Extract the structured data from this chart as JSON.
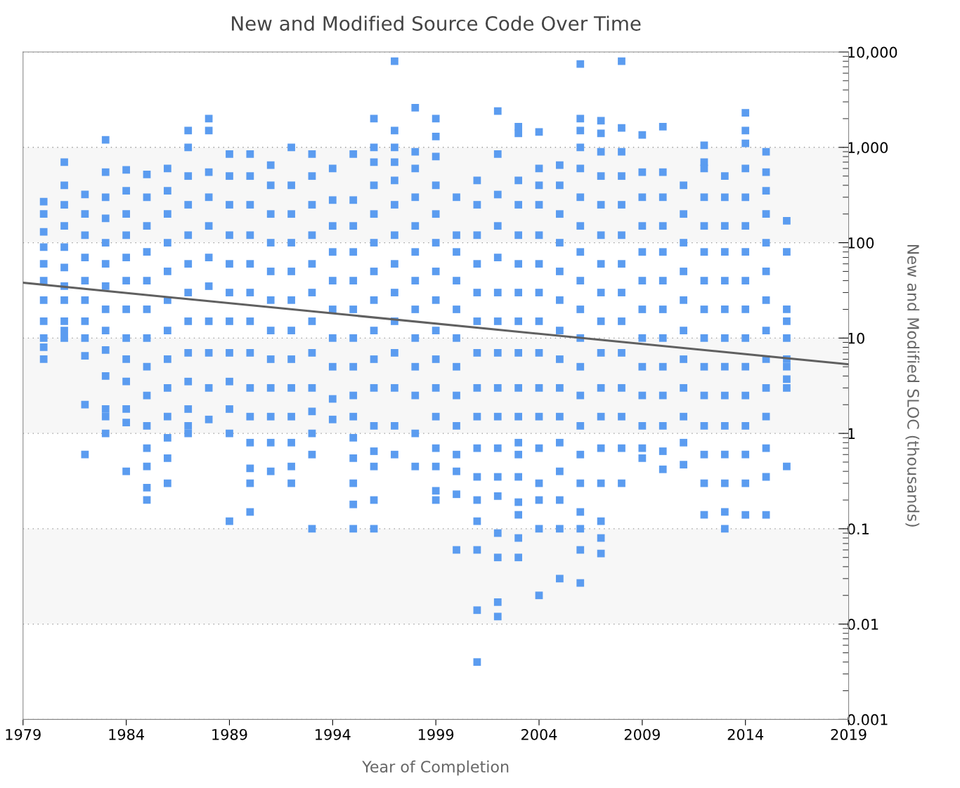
{
  "chart_data": {
    "type": "scatter",
    "title": "New and Modified Source Code Over Time",
    "xlabel": "Year of Completion",
    "ylabel": "New and Modified SLOC (thousands)",
    "log": "y",
    "grid": "y",
    "marker": "square",
    "xlim": [
      1979,
      2019
    ],
    "xticks": [
      1979,
      1984,
      1989,
      1994,
      1999,
      2004,
      2009,
      2014,
      2019
    ],
    "ylim": [
      0.001,
      10000
    ],
    "yticks": [
      {
        "value": 10000,
        "label": "10,000"
      },
      {
        "value": 1000,
        "label": "1,000"
      },
      100,
      10,
      1,
      0.1,
      0.01,
      0.001
    ],
    "bands": [
      {
        "axis": "y",
        "from": 100,
        "to": 1000,
        "color": "#f7f7f7"
      },
      {
        "axis": "y",
        "from": 1,
        "to": 10,
        "color": "#f7f7f7"
      },
      {
        "axis": "y",
        "from": 0.01,
        "to": 0.1,
        "color": "#f7f7f7"
      }
    ],
    "series": [
      {
        "color": "#5b9cf0",
        "x": [
          1980,
          1980,
          1980,
          1980,
          1980,
          1980,
          1980,
          1980,
          1980,
          1980,
          1980
        ],
        "values": [
          270,
          200,
          130,
          90,
          60,
          40,
          25,
          15,
          10,
          8,
          6
        ]
      },
      {
        "color": "#5b9cf0",
        "x": [
          1981,
          1981,
          1981,
          1981,
          1981,
          1981,
          1981,
          1981,
          1981,
          1981,
          1981
        ],
        "values": [
          700,
          400,
          250,
          150,
          90,
          55,
          35,
          25,
          15,
          12,
          10
        ]
      },
      {
        "color": "#5b9cf0",
        "x": [
          1982,
          1982,
          1982,
          1982,
          1982,
          1982,
          1982,
          1982,
          1982,
          1982,
          1982
        ],
        "values": [
          320,
          200,
          120,
          70,
          40,
          25,
          15,
          10,
          6.5,
          2,
          0.6
        ]
      },
      {
        "color": "#5b9cf0",
        "x": [
          1983,
          1983,
          1983,
          1983,
          1983,
          1983,
          1983,
          1983,
          1983,
          1983,
          1983,
          1983,
          1983,
          1983
        ],
        "values": [
          1200,
          550,
          300,
          180,
          100,
          60,
          35,
          20,
          12,
          7.5,
          4,
          1.8,
          1.5,
          1
        ]
      },
      {
        "color": "#5b9cf0",
        "x": [
          1984,
          1984,
          1984,
          1984,
          1984,
          1984,
          1984,
          1984,
          1984,
          1984,
          1984,
          1984,
          1984
        ],
        "values": [
          580,
          350,
          200,
          120,
          70,
          40,
          20,
          10,
          6,
          3.5,
          1.8,
          1.3,
          0.4
        ]
      },
      {
        "color": "#5b9cf0",
        "x": [
          1985,
          1985,
          1985,
          1985,
          1985,
          1985,
          1985,
          1985,
          1985,
          1985,
          1985,
          1985,
          1985,
          1985
        ],
        "values": [
          520,
          300,
          150,
          80,
          40,
          20,
          10,
          5,
          2.5,
          1.2,
          0.7,
          0.45,
          0.27,
          0.2
        ]
      },
      {
        "color": "#5b9cf0",
        "x": [
          1986,
          1986,
          1986,
          1986,
          1986,
          1986,
          1986,
          1986,
          1986,
          1986,
          1986,
          1986,
          1986
        ],
        "values": [
          600,
          350,
          200,
          100,
          50,
          25,
          12,
          6,
          3,
          1.5,
          0.9,
          0.55,
          0.3
        ]
      },
      {
        "color": "#5b9cf0",
        "x": [
          1987,
          1987,
          1987,
          1987,
          1987,
          1987,
          1987,
          1987,
          1987,
          1987,
          1987,
          1987,
          1987
        ],
        "values": [
          1500,
          1000,
          500,
          250,
          120,
          60,
          30,
          15,
          7,
          3.5,
          1.8,
          1.2,
          1
        ]
      },
      {
        "color": "#5b9cf0",
        "x": [
          1988,
          1988,
          1988,
          1988,
          1988,
          1988,
          1988,
          1988,
          1988,
          1988,
          1988
        ],
        "values": [
          2000,
          1500,
          550,
          300,
          150,
          70,
          35,
          15,
          7,
          3,
          1.4
        ]
      },
      {
        "color": "#5b9cf0",
        "x": [
          1989,
          1989,
          1989,
          1989,
          1989,
          1989,
          1989,
          1989,
          1989,
          1989,
          1989,
          1989
        ],
        "values": [
          850,
          500,
          250,
          120,
          60,
          30,
          15,
          7,
          3.5,
          1.8,
          1,
          0.12
        ]
      },
      {
        "color": "#5b9cf0",
        "x": [
          1990,
          1990,
          1990,
          1990,
          1990,
          1990,
          1990,
          1990,
          1990,
          1990,
          1990,
          1990,
          1990,
          1990
        ],
        "values": [
          850,
          500,
          250,
          120,
          60,
          30,
          15,
          7,
          3,
          1.5,
          0.8,
          0.43,
          0.3,
          0.15
        ]
      },
      {
        "color": "#5b9cf0",
        "x": [
          1991,
          1991,
          1991,
          1991,
          1991,
          1991,
          1991,
          1991,
          1991,
          1991,
          1991,
          1991
        ],
        "values": [
          650,
          400,
          200,
          100,
          50,
          25,
          12,
          6,
          3,
          1.5,
          0.8,
          0.4
        ]
      },
      {
        "color": "#5b9cf0",
        "x": [
          1992,
          1992,
          1992,
          1992,
          1992,
          1992,
          1992,
          1992,
          1992,
          1992,
          1992,
          1992,
          1992
        ],
        "values": [
          1000,
          400,
          200,
          100,
          50,
          25,
          12,
          6,
          3,
          1.5,
          0.8,
          0.45,
          0.3
        ]
      },
      {
        "color": "#5b9cf0",
        "x": [
          1993,
          1993,
          1993,
          1993,
          1993,
          1993,
          1993,
          1993,
          1993,
          1993,
          1993,
          1993,
          1993
        ],
        "values": [
          850,
          500,
          250,
          120,
          60,
          30,
          15,
          7,
          3,
          1.7,
          1,
          0.6,
          0.1
        ]
      },
      {
        "color": "#5b9cf0",
        "x": [
          1994,
          1994,
          1994,
          1994,
          1994,
          1994,
          1994,
          1994,
          1994,
          1994
        ],
        "values": [
          600,
          280,
          150,
          80,
          40,
          20,
          10,
          5,
          2.3,
          1.4
        ]
      },
      {
        "color": "#5b9cf0",
        "x": [
          1995,
          1995,
          1995,
          1995,
          1995,
          1995,
          1995,
          1995,
          1995,
          1995,
          1995,
          1995,
          1995,
          1995,
          1995
        ],
        "values": [
          850,
          280,
          150,
          80,
          40,
          20,
          10,
          5,
          2.5,
          1.5,
          0.9,
          0.55,
          0.3,
          0.18,
          0.1
        ]
      },
      {
        "color": "#5b9cf0",
        "x": [
          1996,
          1996,
          1996,
          1996,
          1996,
          1996,
          1996,
          1996,
          1996,
          1996,
          1996,
          1996,
          1996,
          1996,
          1996,
          1996
        ],
        "values": [
          2000,
          1000,
          700,
          400,
          200,
          100,
          50,
          25,
          12,
          6,
          3,
          1.2,
          0.65,
          0.45,
          0.2,
          0.1
        ]
      },
      {
        "color": "#5b9cf0",
        "x": [
          1997,
          1997,
          1997,
          1997,
          1997,
          1997,
          1997,
          1997,
          1997,
          1997,
          1997,
          1997,
          1997,
          1997
        ],
        "values": [
          8000,
          1500,
          1000,
          700,
          450,
          250,
          120,
          60,
          30,
          15,
          7,
          3,
          1.2,
          0.6
        ]
      },
      {
        "color": "#5b9cf0",
        "x": [
          1998,
          1998,
          1998,
          1998,
          1998,
          1998,
          1998,
          1998,
          1998,
          1998,
          1998,
          1998,
          1998
        ],
        "values": [
          2600,
          900,
          600,
          300,
          150,
          80,
          40,
          20,
          10,
          5,
          2.5,
          1,
          0.45
        ]
      },
      {
        "color": "#5b9cf0",
        "x": [
          1999,
          1999,
          1999,
          1999,
          1999,
          1999,
          1999,
          1999,
          1999,
          1999,
          1999,
          1999,
          1999,
          1999,
          1999,
          1999
        ],
        "values": [
          2000,
          1300,
          800,
          400,
          200,
          100,
          50,
          25,
          12,
          6,
          3,
          1.5,
          0.7,
          0.45,
          0.25,
          0.2
        ]
      },
      {
        "color": "#5b9cf0",
        "x": [
          2000,
          2000,
          2000,
          2000,
          2000,
          2000,
          2000,
          2000,
          2000,
          2000,
          2000,
          2000,
          2000
        ],
        "values": [
          300,
          120,
          80,
          40,
          20,
          10,
          5,
          2.5,
          1.2,
          0.6,
          0.4,
          0.23,
          0.06
        ]
      },
      {
        "color": "#5b9cf0",
        "x": [
          2001,
          2001,
          2001,
          2001,
          2001,
          2001,
          2001,
          2001,
          2001,
          2001,
          2001,
          2001,
          2001,
          2001,
          2001,
          2001
        ],
        "values": [
          450,
          250,
          120,
          60,
          30,
          15,
          7,
          3,
          1.5,
          0.7,
          0.35,
          0.2,
          0.12,
          0.06,
          0.014,
          0.004
        ]
      },
      {
        "color": "#5b9cf0",
        "x": [
          2002,
          2002,
          2002,
          2002,
          2002,
          2002,
          2002,
          2002,
          2002,
          2002,
          2002,
          2002,
          2002,
          2002,
          2002,
          2002,
          2002
        ],
        "values": [
          2400,
          850,
          320,
          150,
          70,
          30,
          15,
          7,
          3,
          1.5,
          0.7,
          0.35,
          0.22,
          0.09,
          0.05,
          0.017,
          0.012
        ]
      },
      {
        "color": "#5b9cf0",
        "x": [
          2003,
          2003,
          2003,
          2003,
          2003,
          2003,
          2003,
          2003,
          2003,
          2003,
          2003,
          2003,
          2003,
          2003,
          2003,
          2003,
          2003,
          2003
        ],
        "values": [
          1650,
          1400,
          450,
          250,
          120,
          60,
          30,
          15,
          7,
          3,
          1.5,
          0.8,
          0.6,
          0.35,
          0.19,
          0.14,
          0.08,
          0.05
        ]
      },
      {
        "color": "#5b9cf0",
        "x": [
          2004,
          2004,
          2004,
          2004,
          2004,
          2004,
          2004,
          2004,
          2004,
          2004,
          2004,
          2004,
          2004,
          2004,
          2004,
          2004
        ],
        "values": [
          1450,
          600,
          400,
          250,
          120,
          60,
          30,
          15,
          7,
          3,
          1.5,
          0.7,
          0.3,
          0.2,
          0.1,
          0.02
        ]
      },
      {
        "color": "#5b9cf0",
        "x": [
          2005,
          2005,
          2005,
          2005,
          2005,
          2005,
          2005,
          2005,
          2005,
          2005,
          2005,
          2005,
          2005,
          2005,
          2005
        ],
        "values": [
          650,
          400,
          200,
          100,
          50,
          25,
          12,
          6,
          3,
          1.5,
          0.8,
          0.4,
          0.2,
          0.1,
          0.03
        ]
      },
      {
        "color": "#5b9cf0",
        "x": [
          2006,
          2006,
          2006,
          2006,
          2006,
          2006,
          2006,
          2006,
          2006,
          2006,
          2006,
          2006,
          2006,
          2006,
          2006,
          2006,
          2006,
          2006,
          2006,
          2006
        ],
        "values": [
          7500,
          2000,
          1500,
          1000,
          600,
          300,
          150,
          80,
          40,
          20,
          10,
          5,
          2.5,
          1.2,
          0.6,
          0.3,
          0.15,
          0.1,
          0.06,
          0.027
        ]
      },
      {
        "color": "#5b9cf0",
        "x": [
          2007,
          2007,
          2007,
          2007,
          2007,
          2007,
          2007,
          2007,
          2007,
          2007,
          2007,
          2007,
          2007,
          2007,
          2007,
          2007,
          2007
        ],
        "values": [
          1900,
          1400,
          900,
          500,
          250,
          120,
          60,
          30,
          15,
          7,
          3,
          1.5,
          0.7,
          0.3,
          0.12,
          0.08,
          0.055
        ]
      },
      {
        "color": "#5b9cf0",
        "x": [
          2008,
          2008,
          2008,
          2008,
          2008,
          2008,
          2008,
          2008,
          2008,
          2008,
          2008,
          2008,
          2008,
          2008
        ],
        "values": [
          8000,
          1600,
          900,
          500,
          250,
          120,
          60,
          30,
          15,
          7,
          3,
          1.5,
          0.7,
          0.3
        ]
      },
      {
        "color": "#5b9cf0",
        "x": [
          2009,
          2009,
          2009,
          2009,
          2009,
          2009,
          2009,
          2009,
          2009,
          2009,
          2009,
          2009,
          2009
        ],
        "values": [
          1350,
          550,
          300,
          150,
          80,
          40,
          20,
          10,
          5,
          2.5,
          1.2,
          0.7,
          0.55
        ]
      },
      {
        "color": "#5b9cf0",
        "x": [
          2010,
          2010,
          2010,
          2010,
          2010,
          2010,
          2010,
          2010,
          2010,
          2010,
          2010,
          2010,
          2010
        ],
        "values": [
          1650,
          550,
          300,
          150,
          80,
          40,
          20,
          10,
          5,
          2.5,
          1.2,
          0.65,
          0.42
        ]
      },
      {
        "color": "#5b9cf0",
        "x": [
          2011,
          2011,
          2011,
          2011,
          2011,
          2011,
          2011,
          2011,
          2011,
          2011,
          2011
        ],
        "values": [
          400,
          200,
          100,
          50,
          25,
          12,
          6,
          3,
          1.5,
          0.8,
          0.47
        ]
      },
      {
        "color": "#5b9cf0",
        "x": [
          2012,
          2012,
          2012,
          2012,
          2012,
          2012,
          2012,
          2012,
          2012,
          2012,
          2012,
          2012,
          2012,
          2012,
          2012
        ],
        "values": [
          1050,
          700,
          600,
          300,
          150,
          80,
          40,
          20,
          10,
          5,
          2.5,
          1.2,
          0.6,
          0.3,
          0.14
        ]
      },
      {
        "color": "#5b9cf0",
        "x": [
          2013,
          2013,
          2013,
          2013,
          2013,
          2013,
          2013,
          2013,
          2013,
          2013,
          2013,
          2013,
          2013,
          2013
        ],
        "values": [
          500,
          300,
          150,
          80,
          40,
          20,
          10,
          5,
          2.5,
          1.2,
          0.6,
          0.3,
          0.15,
          0.1
        ]
      },
      {
        "color": "#5b9cf0",
        "x": [
          2014,
          2014,
          2014,
          2014,
          2014,
          2014,
          2014,
          2014,
          2014,
          2014,
          2014,
          2014,
          2014,
          2014,
          2014,
          2014
        ],
        "values": [
          2300,
          1500,
          1100,
          600,
          300,
          150,
          80,
          40,
          20,
          10,
          5,
          2.5,
          1.2,
          0.6,
          0.3,
          0.14
        ]
      },
      {
        "color": "#5b9cf0",
        "x": [
          2015,
          2015,
          2015,
          2015,
          2015,
          2015,
          2015,
          2015,
          2015,
          2015,
          2015,
          2015,
          2015,
          2015
        ],
        "values": [
          900,
          550,
          350,
          200,
          100,
          50,
          25,
          12,
          6,
          3,
          1.5,
          0.7,
          0.35,
          0.14
        ]
      },
      {
        "color": "#5b9cf0",
        "x": [
          2016,
          2016,
          2016,
          2016,
          2016,
          2016,
          2016,
          2016,
          2016,
          2016
        ],
        "values": [
          170,
          80,
          20,
          15,
          10,
          6,
          5,
          3.7,
          3,
          0.45
        ]
      },
      {
        "type": "line",
        "marker": "none",
        "color": "#606060",
        "x": [
          1979,
          2019
        ],
        "values": [
          38,
          5.3
        ]
      }
    ]
  }
}
